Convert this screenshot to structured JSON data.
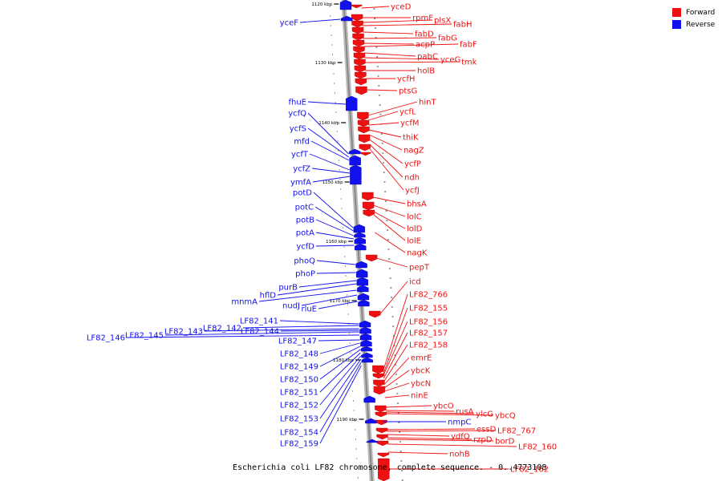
{
  "legend": [
    {
      "label": "Forward",
      "color": "#ee1111"
    },
    {
      "label": "Reverse",
      "color": "#1111ee"
    }
  ],
  "caption": "Escherichia coli LF82 chromosome, complete sequence. - 0..4773108",
  "colors": {
    "forward": "#ee1111",
    "reverse": "#1111ee",
    "backbone": "#888888"
  },
  "scale": [
    {
      "label": "1120 kbp",
      "y": 5
    },
    {
      "label": "1130 kbp",
      "y": 78
    },
    {
      "label": "1140 kbp",
      "y": 153
    },
    {
      "label": "1150 kbp",
      "y": 227
    },
    {
      "label": "1160 kbp",
      "y": 301
    },
    {
      "label": "1170 kbp",
      "y": 375
    },
    {
      "label": "1180 kbp",
      "y": 449
    },
    {
      "label": "1190 kbp",
      "y": 523
    }
  ],
  "forward_genes": [
    "yceD",
    "rpmF",
    "plsX",
    "fabH",
    "fabD",
    "fabG",
    "acpP",
    "fabF",
    "pabC",
    "yceG",
    "tmk",
    "holB",
    "ycfH",
    "ptsG",
    "hinT",
    "ycfL",
    "ycfM",
    "thiK",
    "nagZ",
    "ycfP",
    "ndh",
    "ycfJ",
    "bhsA",
    "lolC",
    "lolD",
    "lolE",
    "nagK",
    "pepT",
    "icd",
    "LF82_766",
    "LF82_155",
    "LF82_156",
    "LF82_157",
    "LF82_158",
    "emrE",
    "ybcK",
    "ybcN",
    "ninE",
    "ybcO",
    "rusA",
    "ylcG",
    "ybcQ",
    "essD",
    "LF82_767",
    "ydfQ",
    "rzpD",
    "borD",
    "LF82_160",
    "nohB",
    "LF82_162"
  ],
  "reverse_genes": [
    "yceF",
    "fhuE",
    "ycfQ",
    "ycfS",
    "mfd",
    "ycfT",
    "ycfZ",
    "ymfA",
    "potD",
    "potC",
    "potB",
    "potA",
    "ycfD",
    "phoQ",
    "phoP",
    "purB",
    "hflD",
    "mnmA",
    "nudJ",
    "rluE",
    "LF82_141",
    "LF82_142",
    "LF82_143",
    "LF82_144",
    "LF82_145",
    "LF82_146",
    "LF82_147",
    "LF82_148",
    "LF82_149",
    "LF82_150",
    "LF82_151",
    "LF82_152",
    "LF82_153",
    "LF82_154",
    "LF82_159",
    "nmpC"
  ]
}
